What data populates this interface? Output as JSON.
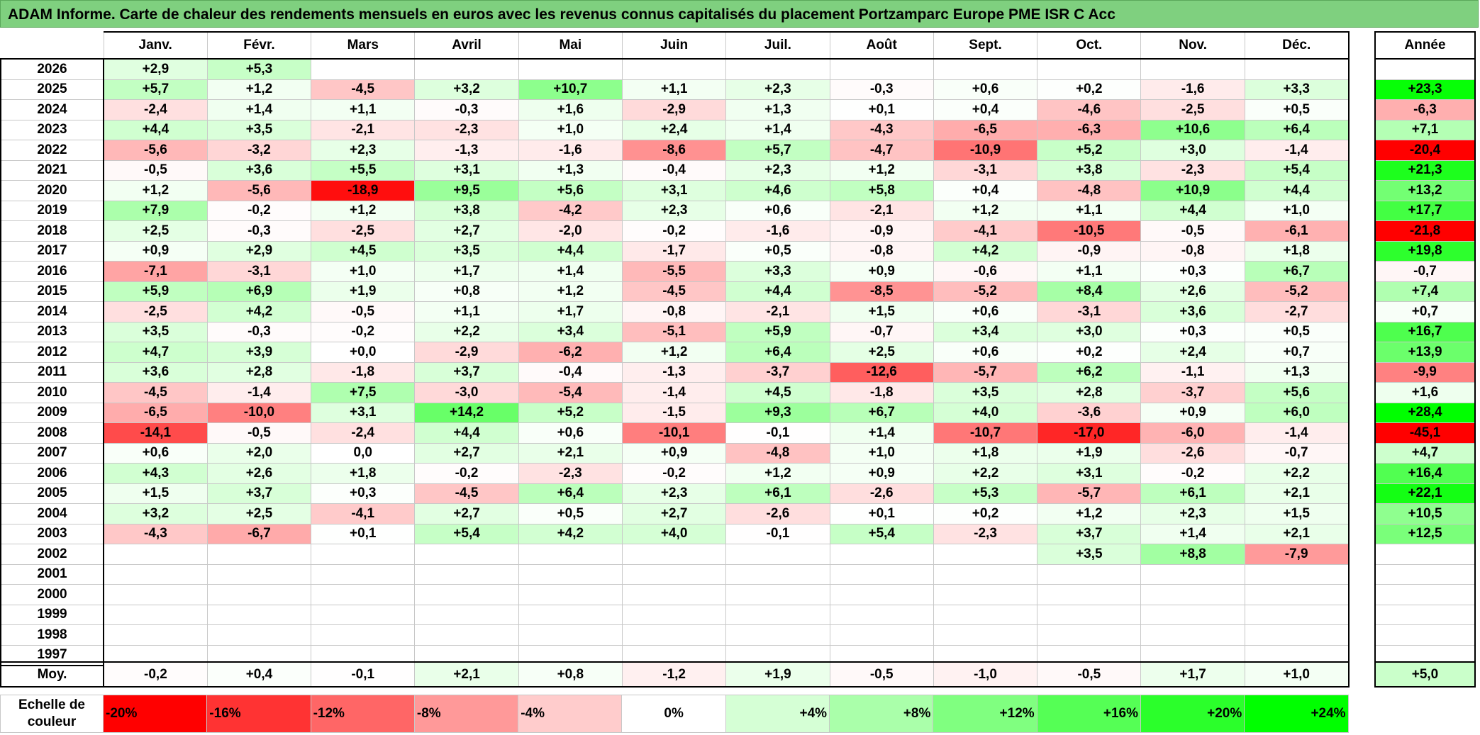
{
  "title": "ADAM Informe. Carte de chaleur des rendements mensuels en euros avec les revenus connus capitalisés du placement Portzamparc Europe PME ISR C Acc",
  "chart_data": {
    "type": "heatmap",
    "months": [
      "Janv.",
      "Févr.",
      "Mars",
      "Avril",
      "Mai",
      "Juin",
      "Juil.",
      "Août",
      "Sept.",
      "Oct.",
      "Nov.",
      "Déc."
    ],
    "year_header": "Année",
    "rows": [
      {
        "year": "2026",
        "values": [
          "+2,9",
          "+5,3",
          "",
          "",
          "",
          "",
          "",
          "",
          "",
          "",
          "",
          ""
        ],
        "annual": ""
      },
      {
        "year": "2025",
        "values": [
          "+5,7",
          "+1,2",
          "-4,5",
          "+3,2",
          "+10,7",
          "+1,1",
          "+2,3",
          "-0,3",
          "+0,6",
          "+0,2",
          "-1,6",
          "+3,3"
        ],
        "annual": "+23,3"
      },
      {
        "year": "2024",
        "values": [
          "-2,4",
          "+1,4",
          "+1,1",
          "-0,3",
          "+1,6",
          "-2,9",
          "+1,3",
          "+0,1",
          "+0,4",
          "-4,6",
          "-2,5",
          "+0,5"
        ],
        "annual": "-6,3"
      },
      {
        "year": "2023",
        "values": [
          "+4,4",
          "+3,5",
          "-2,1",
          "-2,3",
          "+1,0",
          "+2,4",
          "+1,4",
          "-4,3",
          "-6,5",
          "-6,3",
          "+10,6",
          "+6,4"
        ],
        "annual": "+7,1"
      },
      {
        "year": "2022",
        "values": [
          "-5,6",
          "-3,2",
          "+2,3",
          "-1,3",
          "-1,6",
          "-8,6",
          "+5,7",
          "-4,7",
          "-10,9",
          "+5,2",
          "+3,0",
          "-1,4"
        ],
        "annual": "-20,4"
      },
      {
        "year": "2021",
        "values": [
          "-0,5",
          "+3,6",
          "+5,5",
          "+3,1",
          "+1,3",
          "-0,4",
          "+2,3",
          "+1,2",
          "-3,1",
          "+3,8",
          "-2,3",
          "+5,4"
        ],
        "annual": "+21,3"
      },
      {
        "year": "2020",
        "values": [
          "+1,2",
          "-5,6",
          "-18,9",
          "+9,5",
          "+5,6",
          "+3,1",
          "+4,6",
          "+5,8",
          "+0,4",
          "-4,8",
          "+10,9",
          "+4,4"
        ],
        "annual": "+13,2"
      },
      {
        "year": "2019",
        "values": [
          "+7,9",
          "-0,2",
          "+1,2",
          "+3,8",
          "-4,2",
          "+2,3",
          "+0,6",
          "-2,1",
          "+1,2",
          "+1,1",
          "+4,4",
          "+1,0"
        ],
        "annual": "+17,7"
      },
      {
        "year": "2018",
        "values": [
          "+2,5",
          "-0,3",
          "-2,5",
          "+2,7",
          "-2,0",
          "-0,2",
          "-1,6",
          "-0,9",
          "-4,1",
          "-10,5",
          "-0,5",
          "-6,1"
        ],
        "annual": "-21,8"
      },
      {
        "year": "2017",
        "values": [
          "+0,9",
          "+2,9",
          "+4,5",
          "+3,5",
          "+4,4",
          "-1,7",
          "+0,5",
          "-0,8",
          "+4,2",
          "-0,9",
          "-0,8",
          "+1,8"
        ],
        "annual": "+19,8"
      },
      {
        "year": "2016",
        "values": [
          "-7,1",
          "-3,1",
          "+1,0",
          "+1,7",
          "+1,4",
          "-5,5",
          "+3,3",
          "+0,9",
          "-0,6",
          "+1,1",
          "+0,3",
          "+6,7"
        ],
        "annual": "-0,7"
      },
      {
        "year": "2015",
        "values": [
          "+5,9",
          "+6,9",
          "+1,9",
          "+0,8",
          "+1,2",
          "-4,5",
          "+4,4",
          "-8,5",
          "-5,2",
          "+8,4",
          "+2,6",
          "-5,2"
        ],
        "annual": "+7,4"
      },
      {
        "year": "2014",
        "values": [
          "-2,5",
          "+4,2",
          "-0,5",
          "+1,1",
          "+1,7",
          "-0,8",
          "-2,1",
          "+1,5",
          "+0,6",
          "-3,1",
          "+3,6",
          "-2,7"
        ],
        "annual": "+0,7"
      },
      {
        "year": "2013",
        "values": [
          "+3,5",
          "-0,3",
          "-0,2",
          "+2,2",
          "+3,4",
          "-5,1",
          "+5,9",
          "-0,7",
          "+3,4",
          "+3,0",
          "+0,3",
          "+0,5"
        ],
        "annual": "+16,7"
      },
      {
        "year": "2012",
        "values": [
          "+4,7",
          "+3,9",
          "+0,0",
          "-2,9",
          "-6,2",
          "+1,2",
          "+6,4",
          "+2,5",
          "+0,6",
          "+0,2",
          "+2,4",
          "+0,7"
        ],
        "annual": "+13,9"
      },
      {
        "year": "2011",
        "values": [
          "+3,6",
          "+2,8",
          "-1,8",
          "+3,7",
          "-0,4",
          "-1,3",
          "-3,7",
          "-12,6",
          "-5,7",
          "+6,2",
          "-1,1",
          "+1,3"
        ],
        "annual": "-9,9"
      },
      {
        "year": "2010",
        "values": [
          "-4,5",
          "-1,4",
          "+7,5",
          "-3,0",
          "-5,4",
          "-1,4",
          "+4,5",
          "-1,8",
          "+3,5",
          "+2,8",
          "-3,7",
          "+5,6"
        ],
        "annual": "+1,6"
      },
      {
        "year": "2009",
        "values": [
          "-6,5",
          "-10,0",
          "+3,1",
          "+14,2",
          "+5,2",
          "-1,5",
          "+9,3",
          "+6,7",
          "+4,0",
          "-3,6",
          "+0,9",
          "+6,0"
        ],
        "annual": "+28,4"
      },
      {
        "year": "2008",
        "values": [
          "-14,1",
          "-0,5",
          "-2,4",
          "+4,4",
          "+0,6",
          "-10,1",
          "-0,1",
          "+1,4",
          "-10,7",
          "-17,0",
          "-6,0",
          "-1,4"
        ],
        "annual": "-45,1"
      },
      {
        "year": "2007",
        "values": [
          "+0,6",
          "+2,0",
          "0,0",
          "+2,7",
          "+2,1",
          "+0,9",
          "-4,8",
          "+1,0",
          "+1,8",
          "+1,9",
          "-2,6",
          "-0,7"
        ],
        "annual": "+4,7"
      },
      {
        "year": "2006",
        "values": [
          "+4,3",
          "+2,6",
          "+1,8",
          "-0,2",
          "-2,3",
          "-0,2",
          "+1,2",
          "+0,9",
          "+2,2",
          "+3,1",
          "-0,2",
          "+2,2"
        ],
        "annual": "+16,4"
      },
      {
        "year": "2005",
        "values": [
          "+1,5",
          "+3,7",
          "+0,3",
          "-4,5",
          "+6,4",
          "+2,3",
          "+6,1",
          "-2,6",
          "+5,3",
          "-5,7",
          "+6,1",
          "+2,1"
        ],
        "annual": "+22,1"
      },
      {
        "year": "2004",
        "values": [
          "+3,2",
          "+2,5",
          "-4,1",
          "+2,7",
          "+0,5",
          "+2,7",
          "-2,6",
          "+0,1",
          "+0,2",
          "+1,2",
          "+2,3",
          "+1,5"
        ],
        "annual": "+10,5"
      },
      {
        "year": "2003",
        "values": [
          "-4,3",
          "-6,7",
          "+0,1",
          "+5,4",
          "+4,2",
          "+4,0",
          "-0,1",
          "+5,4",
          "-2,3",
          "+3,7",
          "+1,4",
          "+2,1"
        ],
        "annual": "+12,5"
      },
      {
        "year": "2002",
        "values": [
          "",
          "",
          "",
          "",
          "",
          "",
          "",
          "",
          "",
          "+3,5",
          "+8,8",
          "-7,9"
        ],
        "annual": ""
      },
      {
        "year": "2001",
        "values": [
          "",
          "",
          "",
          "",
          "",
          "",
          "",
          "",
          "",
          "",
          "",
          ""
        ],
        "annual": ""
      },
      {
        "year": "2000",
        "values": [
          "",
          "",
          "",
          "",
          "",
          "",
          "",
          "",
          "",
          "",
          "",
          ""
        ],
        "annual": ""
      },
      {
        "year": "1999",
        "values": [
          "",
          "",
          "",
          "",
          "",
          "",
          "",
          "",
          "",
          "",
          "",
          ""
        ],
        "annual": ""
      },
      {
        "year": "1998",
        "values": [
          "",
          "",
          "",
          "",
          "",
          "",
          "",
          "",
          "",
          "",
          "",
          ""
        ],
        "annual": ""
      },
      {
        "year": "1997",
        "values": [
          "",
          "",
          "",
          "",
          "",
          "",
          "",
          "",
          "",
          "",
          "",
          ""
        ],
        "annual": ""
      }
    ],
    "average": {
      "label": "Moy.",
      "values": [
        "-0,2",
        "+0,4",
        "-0,1",
        "+2,1",
        "+0,8",
        "-1,2",
        "+1,9",
        "-0,5",
        "-1,0",
        "-0,5",
        "+1,7",
        "+1,0"
      ],
      "annual": "+5,0"
    },
    "color_scale": {
      "label": "Echelle de couleur",
      "stops": [
        {
          "label": "-20%",
          "value": -20
        },
        {
          "label": "-16%",
          "value": -16
        },
        {
          "label": "-12%",
          "value": -12
        },
        {
          "label": "-8%",
          "value": -8
        },
        {
          "label": "-4%",
          "value": -4
        },
        {
          "label": "0%",
          "value": 0
        },
        {
          "label": "+4%",
          "value": 4
        },
        {
          "label": "+8%",
          "value": 8
        },
        {
          "label": "+12%",
          "value": 12
        },
        {
          "label": "+16%",
          "value": 16
        },
        {
          "label": "+20%",
          "value": 20
        },
        {
          "label": "+24%",
          "value": 24
        }
      ],
      "negative_color": "#ff0000",
      "positive_color": "#00ff00",
      "neutral_color": "#ffffff"
    }
  }
}
